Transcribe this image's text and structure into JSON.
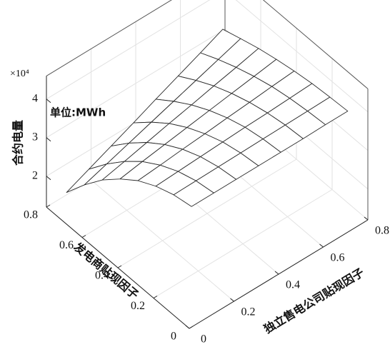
{
  "chart_data": {
    "type": "surface",
    "z_label": "合约电量",
    "x_label": "独立售电公司贴现因子",
    "y_label": "发电商贴现因子",
    "annotation": "单位:MWh",
    "z_multiplier": "×10⁴",
    "x": [
      0.05,
      0.15,
      0.25,
      0.35,
      0.45,
      0.55,
      0.65,
      0.75
    ],
    "y": [
      0.05,
      0.15,
      0.25,
      0.35,
      0.45,
      0.55,
      0.65,
      0.75
    ],
    "z": [
      [
        3.99,
        3.99,
        3.99,
        3.99,
        3.99,
        3.99,
        4.0,
        4.0
      ],
      [
        3.9,
        3.91,
        3.92,
        3.93,
        3.94,
        3.95,
        3.96,
        3.97
      ],
      [
        3.73,
        3.76,
        3.79,
        3.82,
        3.85,
        3.87,
        3.9,
        3.93
      ],
      [
        3.48,
        3.53,
        3.59,
        3.64,
        3.7,
        3.75,
        3.81,
        3.86
      ],
      [
        3.13,
        3.23,
        3.32,
        3.41,
        3.5,
        3.59,
        3.68,
        3.77
      ],
      [
        2.71,
        2.84,
        2.98,
        3.12,
        3.25,
        3.39,
        3.52,
        3.66
      ],
      [
        2.19,
        2.38,
        2.57,
        2.76,
        2.95,
        3.14,
        3.33,
        3.52
      ],
      [
        1.6,
        1.85,
        2.1,
        2.35,
        2.61,
        2.86,
        3.11,
        3.37
      ]
    ],
    "xlim": [
      0,
      0.8
    ],
    "xticks": [
      0,
      0.2,
      0.4,
      0.6,
      0.8
    ],
    "ylim": [
      0,
      0.8
    ],
    "yticks": [
      0,
      0.2,
      0.4,
      0.6,
      0.8
    ],
    "zlim": [
      1.2,
      4.6
    ],
    "zticks": [
      2,
      3,
      4
    ],
    "grid": true,
    "surface_color": "#ffffff",
    "edge_color": "#2a2a2a"
  }
}
